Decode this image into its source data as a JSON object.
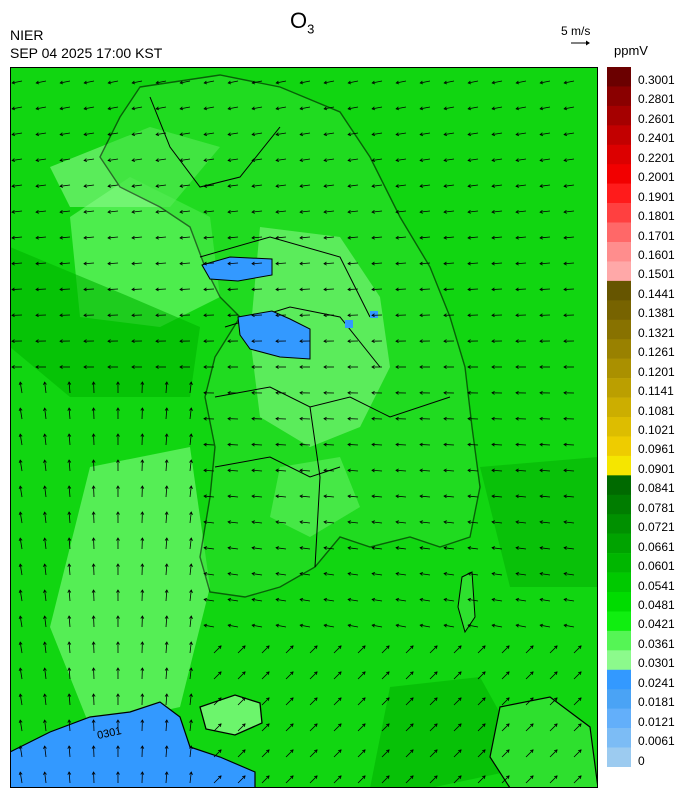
{
  "header": {
    "title_main": "O",
    "title_sub": "3",
    "agency": "NIER",
    "timestamp": "SEP 04 2025 17:00 KST",
    "wind_reference": "5 m/s",
    "unit": "ppmV"
  },
  "map": {
    "contour_label": "0301",
    "sea_background": "#11d611",
    "wind_arrow_color": "#000000",
    "coastline_color": "#000000",
    "vectors_shown": true,
    "projection_region": "Korean Peninsula (South Korea)"
  },
  "colorbar": {
    "labels": [
      "0.3001",
      "0.2801",
      "0.2601",
      "0.2401",
      "0.2201",
      "0.2001",
      "0.1901",
      "0.1801",
      "0.1701",
      "0.1601",
      "0.1501",
      "0.1441",
      "0.1381",
      "0.1321",
      "0.1261",
      "0.1201",
      "0.1141",
      "0.1081",
      "0.1021",
      "0.0961",
      "0.0901",
      "0.0841",
      "0.0781",
      "0.0721",
      "0.0661",
      "0.0601",
      "0.0541",
      "0.0481",
      "0.0421",
      "0.0361",
      "0.0301",
      "0.0241",
      "0.0181",
      "0.0121",
      "0.0061",
      "0"
    ],
    "colors": [
      "#6b0000",
      "#8a0000",
      "#a50000",
      "#c20000",
      "#dc0000",
      "#f20000",
      "#ff1b1b",
      "#ff4040",
      "#ff6868",
      "#ff8d8d",
      "#ffa8a8",
      "#665500",
      "#776300",
      "#887200",
      "#998100",
      "#aa9000",
      "#bb9f00",
      "#ccae00",
      "#ddbd00",
      "#eecc00",
      "#f5e600",
      "#006a00",
      "#007d00",
      "#009000",
      "#00a300",
      "#00b600",
      "#00c900",
      "#00dc00",
      "#10ee10",
      "#55f555",
      "#8cfa8c",
      "#3399ff",
      "#4aa3f5",
      "#63affa",
      "#7cbcf5",
      "#9ccbf0"
    ]
  }
}
